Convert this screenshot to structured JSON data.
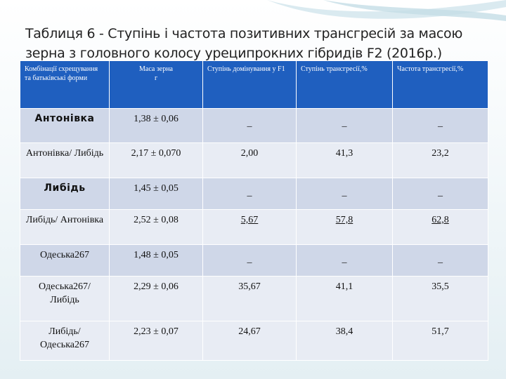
{
  "title": "Таблиця 6  -  Ступінь і частота позитивних трансгресій за масою зерна з головного колосу уреципрокних гібридів F2 (2016р.)",
  "table": {
    "headers": [
      "Комбінації схрещування та батьківські форми",
      "Маса зерна\nг",
      "Ступінь домінування у F1",
      "Ступінь трансгресії,%",
      "Частота трансгресії,%"
    ],
    "rows": [
      {
        "form": "Антонівка",
        "mass": "1,38 ± 0,06",
        "dom": "_",
        "deg": "_",
        "freq": "_"
      },
      {
        "form": "Антонівка/ Либідь",
        "mass": "2,17 ± 0,070",
        "dom": "2,00",
        "deg": "41,3",
        "freq": "23,2"
      },
      {
        "form": "Либідь",
        "mass": "1,45 ± 0,05",
        "dom": "_",
        "deg": "_",
        "freq": "_"
      },
      {
        "form": "Либідь/ Антонівка",
        "mass": "2,52 ± 0,08",
        "dom": "5,67",
        "deg": "57,8",
        "freq": "62,8"
      },
      {
        "form": "Одеська267",
        "mass": "1,48 ± 0,05",
        "dom": "_",
        "deg": "_",
        "freq": "_"
      },
      {
        "form": "Одеська267/ Либідь",
        "mass": "2,29 ± 0,06",
        "dom": "35,67",
        "deg": "41,1",
        "freq": "35,5"
      },
      {
        "form": "Либідь/ Одеська267",
        "mass": "2,23 ± 0,07",
        "dom": "24,67",
        "deg": "38,4",
        "freq": "51,7"
      }
    ]
  },
  "colors": {
    "header_bg": "#1f5fbf",
    "row_odd": "#cfd7e8",
    "row_even": "#e8ecf4",
    "highlight_red": "#c00000"
  }
}
